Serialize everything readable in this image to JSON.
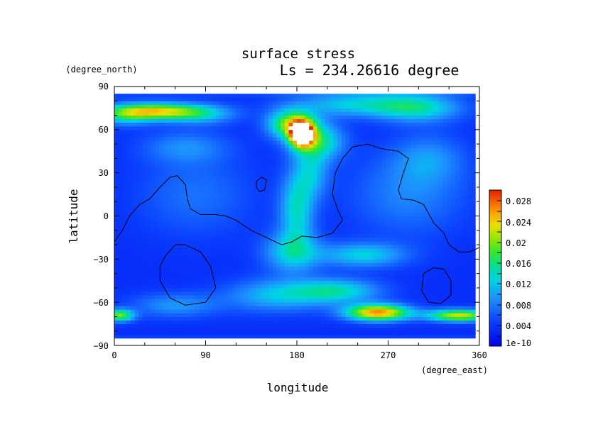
{
  "chart_data": {
    "type": "heatmap",
    "title": "surface stress",
    "subtitle": "Ls = 234.26616 degree",
    "xlabel": "longitude",
    "ylabel": "latitude",
    "x_unit": "(degree_east)",
    "y_unit": "(degree_north)",
    "xlim": [
      0,
      360
    ],
    "ylim": [
      -90,
      90
    ],
    "x_ticks": [
      "0",
      "90",
      "180",
      "270",
      "360"
    ],
    "y_ticks": [
      "90",
      "60",
      "30",
      "0",
      "−30",
      "−60",
      "−90"
    ],
    "colorbar": {
      "min": 0,
      "max": 0.03,
      "tick_labels": [
        "1e-10",
        "0.004",
        "0.008",
        "0.012",
        "0.016",
        "0.02",
        "0.024",
        "0.028"
      ],
      "colormap": "rainbow (blue-cyan-green-yellow-red)"
    },
    "hotspots": [
      {
        "lon": 185,
        "lat": 57,
        "value": 0.03,
        "note": "white saturated peak"
      },
      {
        "lon": 175,
        "lat": 62,
        "value": 0.027
      },
      {
        "lon": 260,
        "lat": -67,
        "value": 0.025
      },
      {
        "lon": 340,
        "lat": -69,
        "value": 0.022
      },
      {
        "lon": 40,
        "lat": 73,
        "value": 0.021
      },
      {
        "lon": 5,
        "lat": -69,
        "value": 0.02
      },
      {
        "lon": 210,
        "lat": 50,
        "value": 0.017
      },
      {
        "lon": 220,
        "lat": -52,
        "value": 0.014
      },
      {
        "lon": 255,
        "lat": 75,
        "value": 0.013
      },
      {
        "lon": 180,
        "lat": 0,
        "value": 0.012
      },
      {
        "lon": 245,
        "lat": -27,
        "value": 0.011
      }
    ],
    "grid": false
  }
}
